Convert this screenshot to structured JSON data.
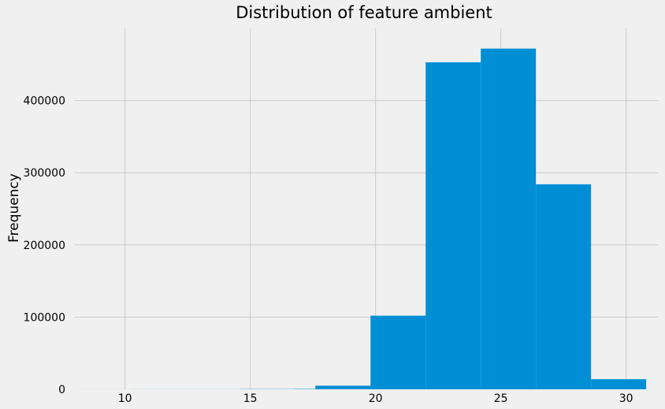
{
  "chart_data": {
    "type": "bar",
    "title": "Distribution of feature ambient",
    "xlabel": "",
    "ylabel": "Frequency",
    "bins": [
      {
        "x0": 8.1,
        "x1": 10.26,
        "value": 50
      },
      {
        "x0": 10.26,
        "x1": 12.42,
        "value": 100
      },
      {
        "x0": 12.42,
        "x1": 14.58,
        "value": 120
      },
      {
        "x0": 14.58,
        "x1": 16.74,
        "value": 300
      },
      {
        "x0": 16.74,
        "x1": 17.6,
        "value": 500
      },
      {
        "x0": 17.6,
        "x1": 19.8,
        "value": 5000
      },
      {
        "x0": 19.8,
        "x1": 22.0,
        "value": 102000
      },
      {
        "x0": 22.0,
        "x1": 24.2,
        "value": 453000
      },
      {
        "x0": 24.2,
        "x1": 26.4,
        "value": 472000
      },
      {
        "x0": 26.4,
        "x1": 28.6,
        "value": 284000
      },
      {
        "x0": 28.6,
        "x1": 30.8,
        "value": 14000
      }
    ],
    "xlim": [
      8.0,
      31.3
    ],
    "ylim": [
      0,
      500000
    ],
    "xticks": [
      10,
      15,
      20,
      25,
      30
    ],
    "yticks": [
      0,
      100000,
      200000,
      300000,
      400000
    ],
    "grid": true,
    "bar_color": "#008fd5",
    "background": "#f0f0f0"
  }
}
